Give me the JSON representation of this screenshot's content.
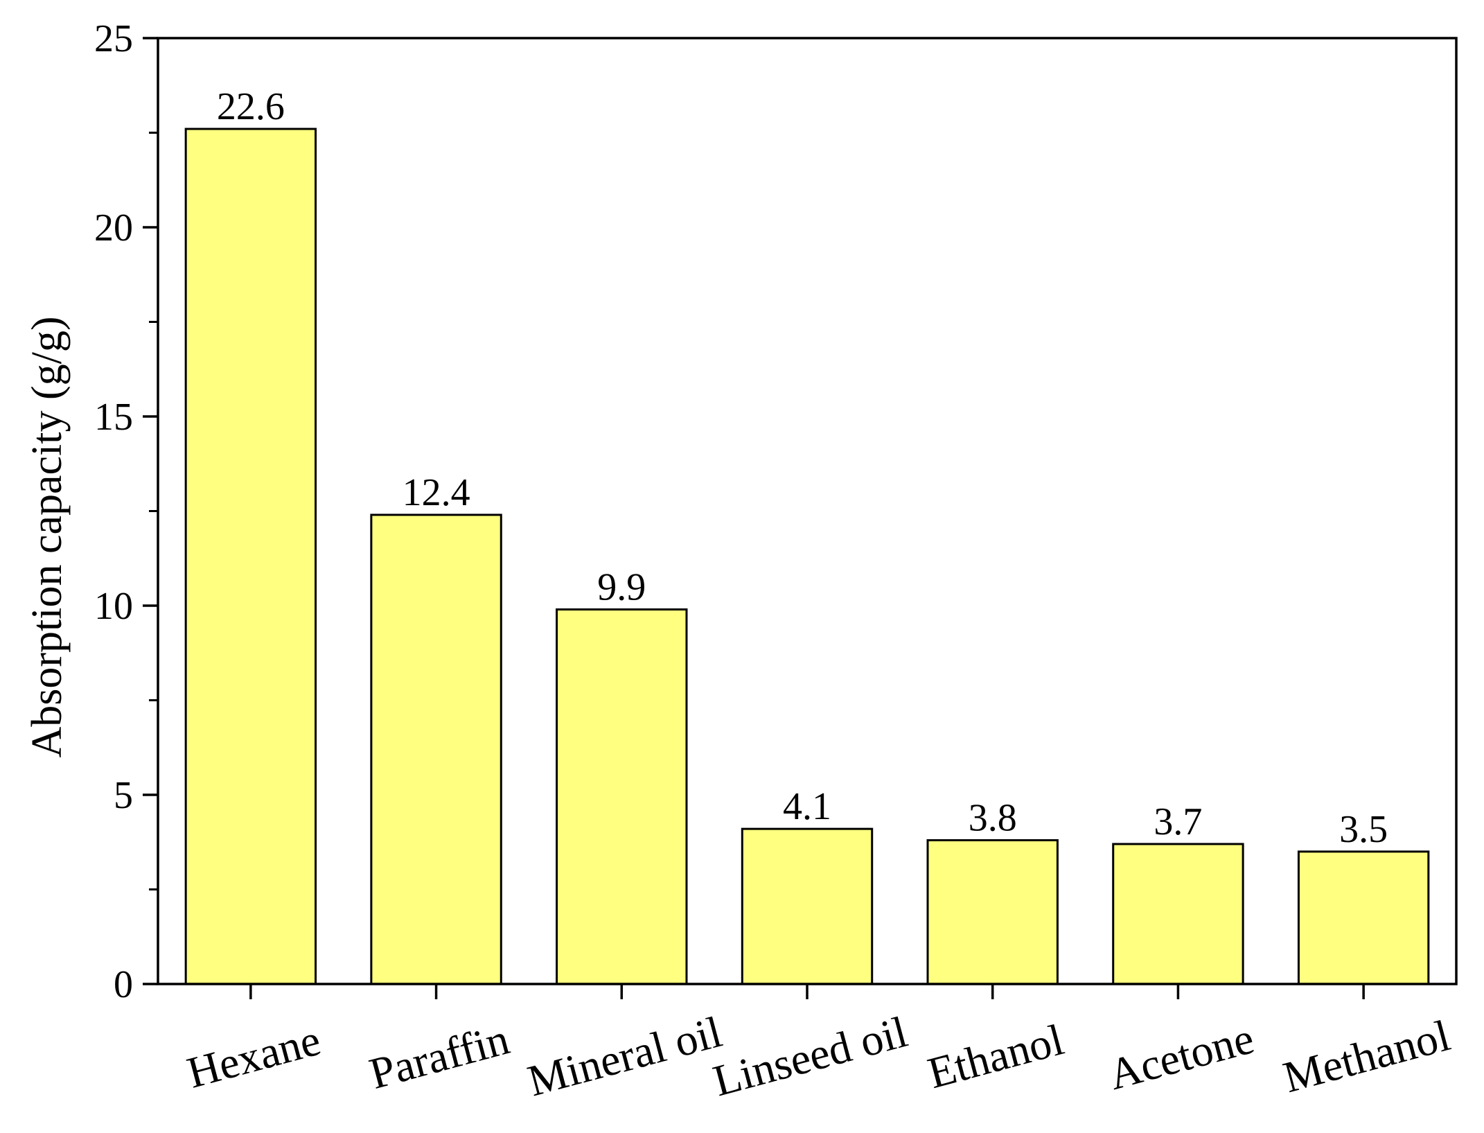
{
  "chart_data": {
    "type": "bar",
    "title": "",
    "xlabel": "",
    "ylabel": "Absorption capacity (g/g)",
    "categories": [
      "Hexane",
      "Paraffin",
      "Mineral oil",
      "Linseed oil",
      "Ethanol",
      "Acetone",
      "Methanol"
    ],
    "values": [
      22.6,
      12.4,
      9.9,
      4.1,
      3.8,
      3.7,
      3.5
    ],
    "data_labels": [
      "22.6",
      "12.4",
      "9.9",
      "4.1",
      "3.8",
      "3.7",
      "3.5"
    ],
    "ylim": [
      0,
      25
    ],
    "yticks": [
      0,
      5,
      10,
      15,
      20,
      25
    ],
    "ytick_labels": [
      "0",
      "5",
      "10",
      "15",
      "20",
      "25"
    ],
    "y_minor_tick_step": 2.5,
    "grid": false,
    "legend": "none",
    "bar_color": "#ffff80",
    "bar_edge_color": "#000000",
    "x_tick_label_rotation_deg": -15
  }
}
